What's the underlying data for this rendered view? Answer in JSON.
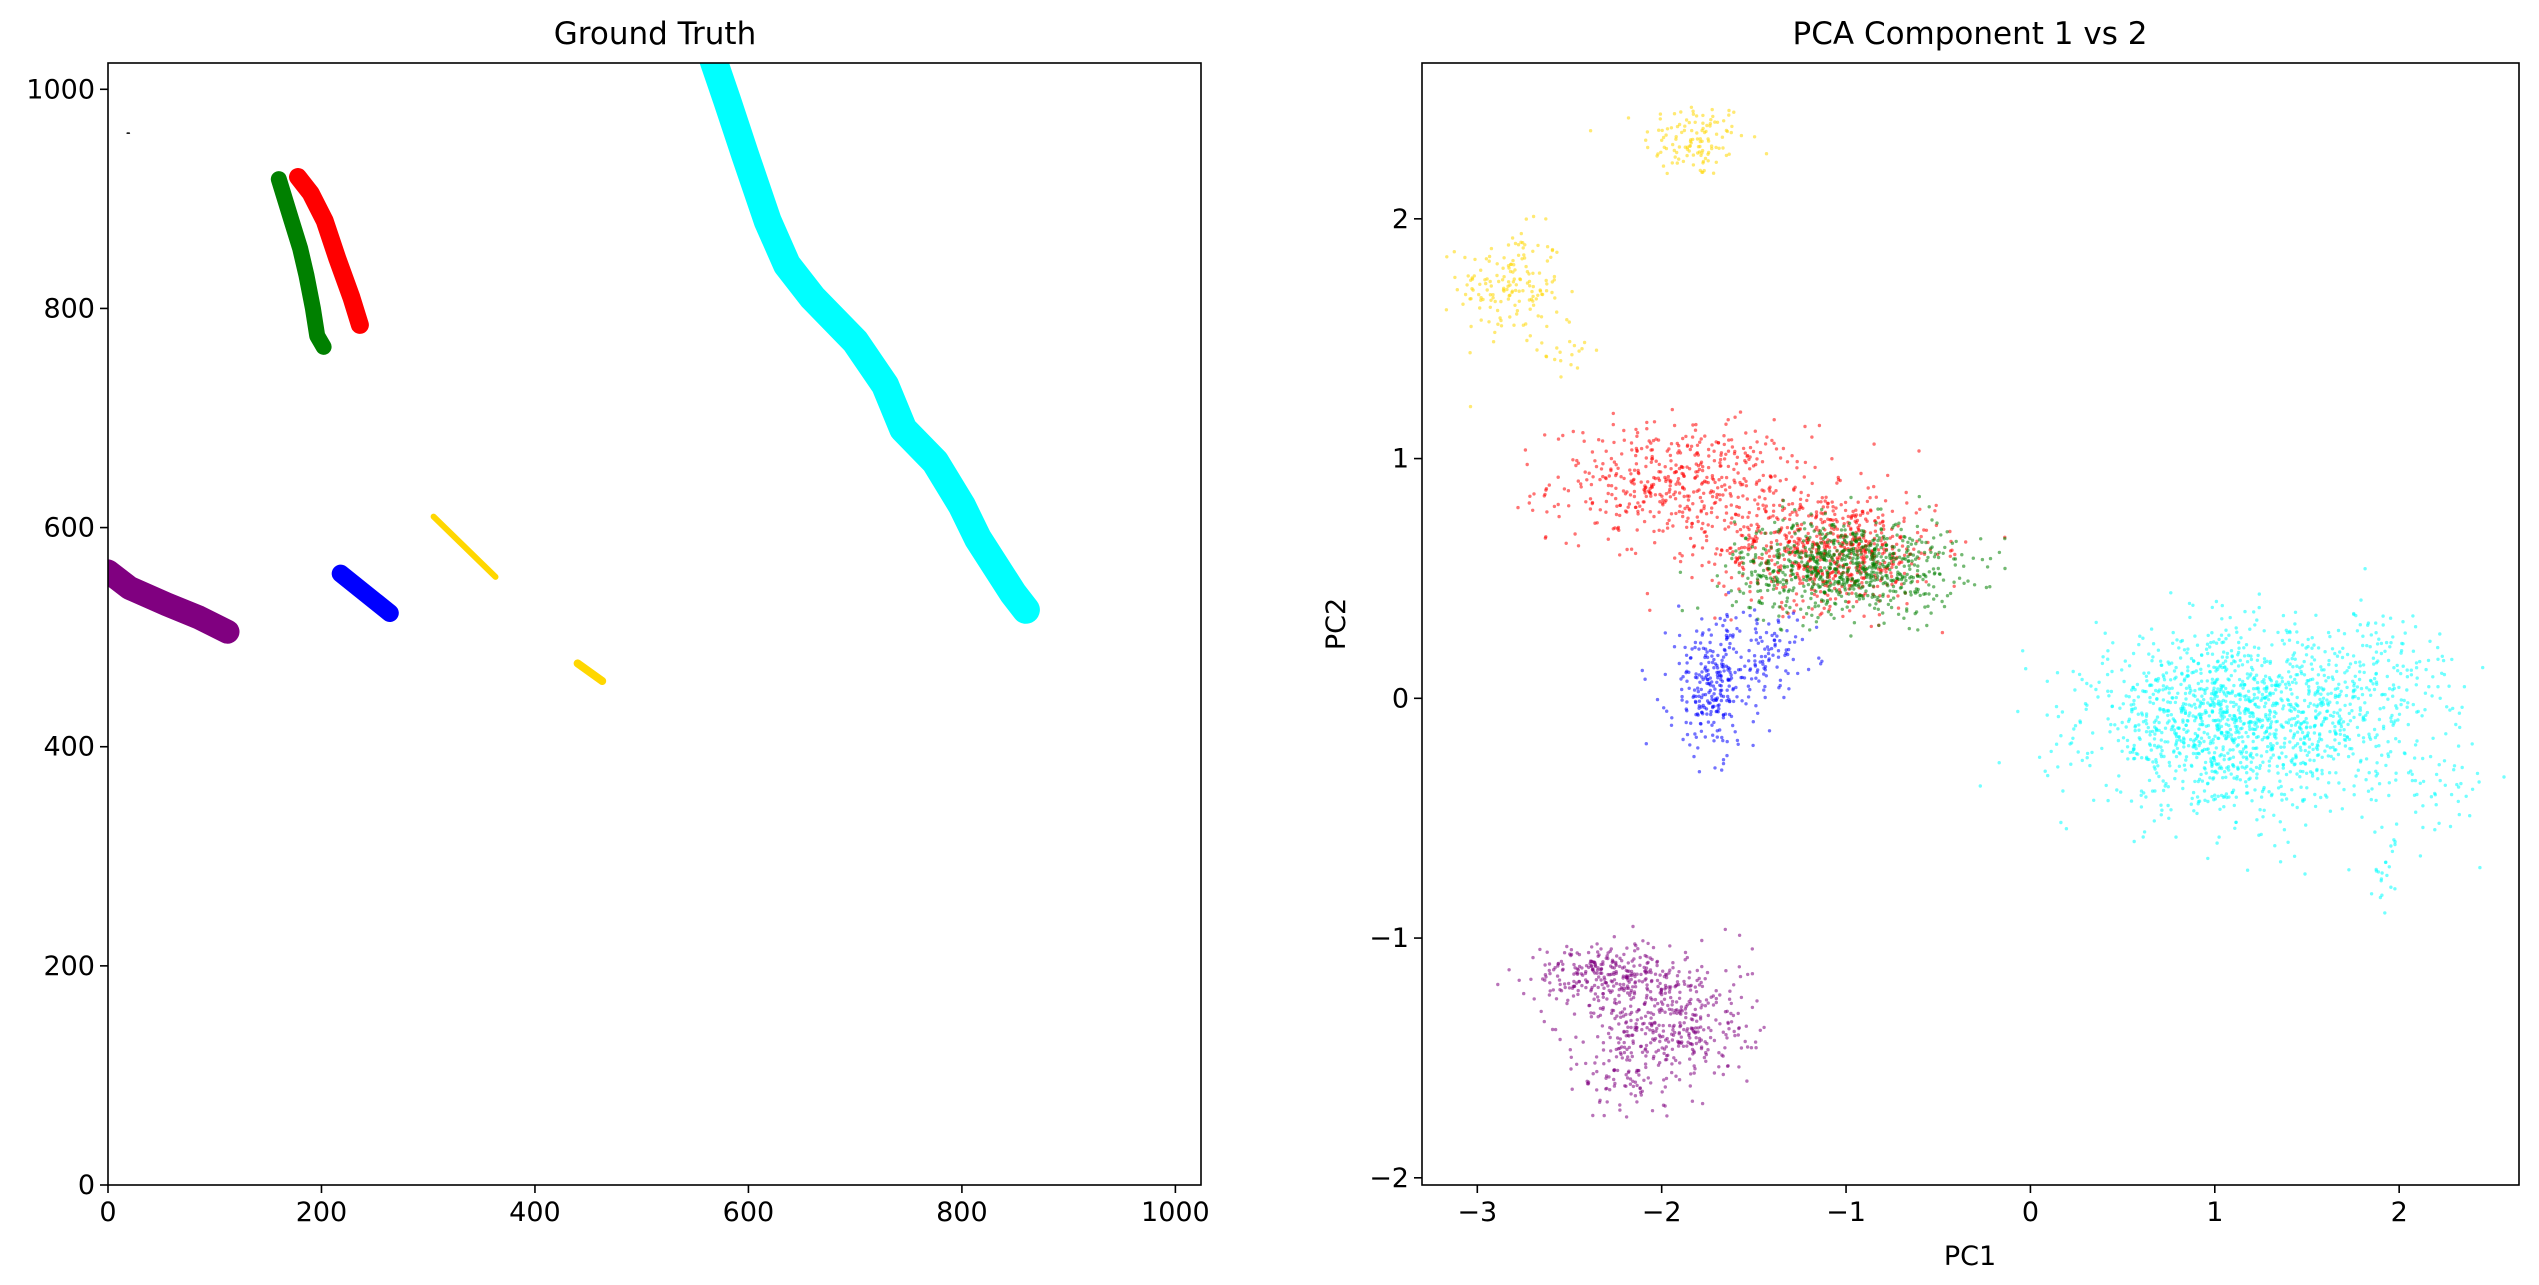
{
  "chart_data": [
    {
      "type": "line",
      "title": "Ground Truth",
      "xlabel": "",
      "ylabel": "",
      "xlim": [
        0,
        1024
      ],
      "ylim": [
        0,
        1024
      ],
      "x_ticks": [
        0,
        200,
        400,
        600,
        800,
        1000
      ],
      "y_ticks": [
        0,
        200,
        400,
        600,
        800,
        1000
      ],
      "series": [
        {
          "color": "#00ffff",
          "width": 28,
          "points": [
            [
              566,
              1030
            ],
            [
              580,
              990
            ],
            [
              597,
              940
            ],
            [
              618,
              880
            ],
            [
              636,
              840
            ],
            [
              660,
              810
            ],
            [
              700,
              770
            ],
            [
              728,
              730
            ],
            [
              745,
              690
            ],
            [
              775,
              660
            ],
            [
              800,
              620
            ],
            [
              815,
              590
            ],
            [
              848,
              540
            ],
            [
              860,
              525
            ]
          ]
        },
        {
          "color": "#008000",
          "width": 16,
          "points": [
            [
              160,
              918
            ],
            [
              172,
              880
            ],
            [
              180,
              855
            ],
            [
              186,
              830
            ],
            [
              192,
              800
            ],
            [
              196,
              775
            ],
            [
              202,
              765
            ]
          ]
        },
        {
          "color": "#ff0000",
          "width": 18,
          "points": [
            [
              178,
              920
            ],
            [
              190,
              905
            ],
            [
              203,
              880
            ],
            [
              215,
              845
            ],
            [
              228,
              810
            ],
            [
              236,
              785
            ]
          ]
        },
        {
          "color": "#800080",
          "width": 24,
          "points": [
            [
              0,
              560
            ],
            [
              20,
              545
            ],
            [
              55,
              530
            ],
            [
              85,
              518
            ],
            [
              112,
              505
            ]
          ]
        },
        {
          "color": "#0000ff",
          "width": 18,
          "points": [
            [
              218,
              558
            ],
            [
              264,
              522
            ]
          ]
        },
        {
          "color": "#ffd700",
          "width": 6,
          "points": [
            [
              305,
              610
            ],
            [
              363,
              555
            ]
          ]
        },
        {
          "color": "#ffd700",
          "width": 8,
          "points": [
            [
              440,
              476
            ],
            [
              463,
              460
            ]
          ]
        },
        {
          "color": "#000000",
          "width": 1.5,
          "points": [
            [
              18,
              960
            ],
            [
              20,
              960
            ]
          ]
        }
      ]
    },
    {
      "type": "scatter",
      "title": "PCA Component 1 vs 2",
      "xlabel": "PC1",
      "ylabel": "PC2",
      "xlim": [
        -3.3,
        2.65
      ],
      "ylim": [
        -2.03,
        2.65
      ],
      "x_ticks": [
        -3,
        -2,
        -1,
        0,
        1,
        2
      ],
      "y_ticks": [
        -2,
        -1,
        0,
        1,
        2
      ],
      "x_tick_labels": [
        "−3",
        "−2",
        "−1",
        "0",
        "1",
        "2"
      ],
      "y_tick_labels": [
        "−2",
        "−1",
        "0",
        "1",
        "2"
      ],
      "clusters": [
        {
          "color": "#ffd700",
          "center": [
            -1.82,
            2.33
          ],
          "spread": [
            0.14,
            0.08
          ],
          "n": 120
        },
        {
          "color": "#ffd700",
          "center": [
            -2.82,
            1.72
          ],
          "spread": [
            0.14,
            0.12
          ],
          "n": 160
        },
        {
          "color": "#ffd700",
          "center": [
            -2.5,
            1.45
          ],
          "spread": [
            0.07,
            0.07
          ],
          "n": 20
        },
        {
          "color": "#ff0000",
          "center": [
            -1.9,
            0.9
          ],
          "spread": [
            0.35,
            0.12
          ],
          "n": 500
        },
        {
          "color": "#ff0000",
          "center": [
            -1.1,
            0.62
          ],
          "spread": [
            0.3,
            0.12
          ],
          "n": 700
        },
        {
          "color": "#008000",
          "center": [
            -1.0,
            0.55
          ],
          "spread": [
            0.3,
            0.1
          ],
          "n": 800
        },
        {
          "color": "#0000ff",
          "center": [
            -1.72,
            0.05
          ],
          "spread": [
            0.12,
            0.14
          ],
          "n": 280
        },
        {
          "color": "#0000ff",
          "center": [
            -1.4,
            0.2
          ],
          "spread": [
            0.12,
            0.08
          ],
          "n": 80
        },
        {
          "color": "#00ffff",
          "center": [
            1.1,
            -0.1
          ],
          "spread": [
            0.38,
            0.18
          ],
          "n": 1400
        },
        {
          "color": "#00ffff",
          "center": [
            1.85,
            0.05
          ],
          "spread": [
            0.25,
            0.16
          ],
          "n": 220
        },
        {
          "color": "#00ffff",
          "center": [
            2.15,
            -0.35
          ],
          "spread": [
            0.18,
            0.12
          ],
          "n": 60
        },
        {
          "color": "#00ffff",
          "center": [
            1.93,
            -0.72
          ],
          "spread": [
            0.05,
            0.08
          ],
          "n": 20
        },
        {
          "color": "#800080",
          "center": [
            -2.3,
            -1.15
          ],
          "spread": [
            0.2,
            0.06
          ],
          "n": 260
        },
        {
          "color": "#800080",
          "center": [
            -1.95,
            -1.35
          ],
          "spread": [
            0.22,
            0.14
          ],
          "n": 420
        },
        {
          "color": "#800080",
          "center": [
            -2.2,
            -1.55
          ],
          "spread": [
            0.12,
            0.1
          ],
          "n": 80
        }
      ]
    }
  ]
}
